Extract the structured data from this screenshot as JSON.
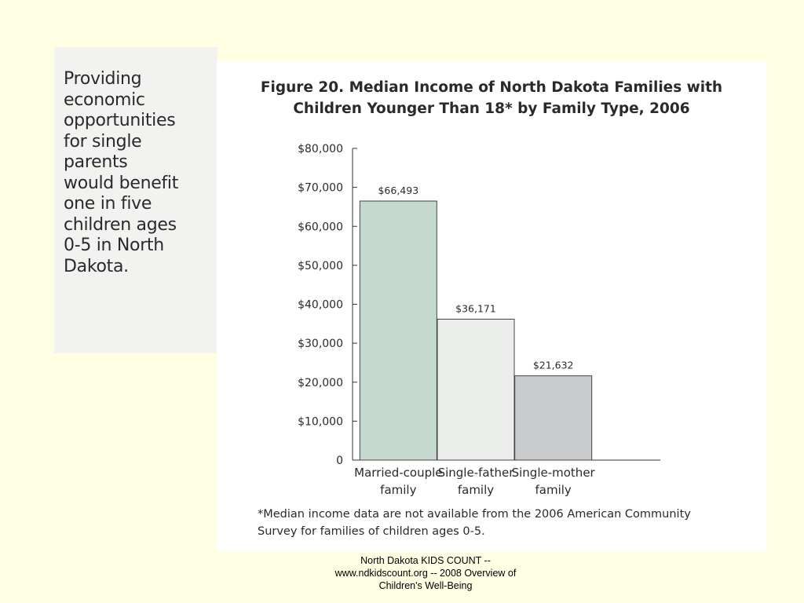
{
  "callout": {
    "lines": [
      "Providing",
      "economic",
      "opportunities",
      "for single",
      "parents",
      "would benefit",
      "one in five",
      "children ages",
      "0-5 in North",
      "Dakota."
    ]
  },
  "figure": {
    "title_lines": [
      "Figure 20. Median Income of North Dakota Families with",
      "Children Younger Than 18* by Family Type, 2006"
    ],
    "footnote_lines": [
      "*Median income data are not available from the 2006 American Community",
      "Survey for families of children ages 0-5."
    ]
  },
  "source": {
    "lines": [
      "North Dakota KIDS COUNT --",
      "www.ndkidscount.org -- 2008 Overview of",
      "Children's Well-Being"
    ]
  },
  "chart_data": {
    "type": "bar",
    "title": "Figure 20. Median Income of North Dakota Families with Children Younger Than 18* by Family Type, 2006",
    "categories": [
      [
        "Married-couple",
        "family"
      ],
      [
        "Single-father",
        "family"
      ],
      [
        "Single-mother",
        "family"
      ]
    ],
    "values": [
      66493,
      36171,
      21632
    ],
    "value_labels": [
      "$66,493",
      "$36,171",
      "$21,632"
    ],
    "bar_colors": [
      "#c5d9cf",
      "#ebeeeb",
      "#cacbcc"
    ],
    "ylim": [
      0,
      80000
    ],
    "yticks": [
      0,
      10000,
      20000,
      30000,
      40000,
      50000,
      60000,
      70000,
      80000
    ],
    "ytick_labels": [
      "0",
      "$10,000",
      "$20,000",
      "$30,000",
      "$40,000",
      "$50,000",
      "$60,000",
      "$70,000",
      "$80,000"
    ],
    "grid": false,
    "legend": "none"
  }
}
